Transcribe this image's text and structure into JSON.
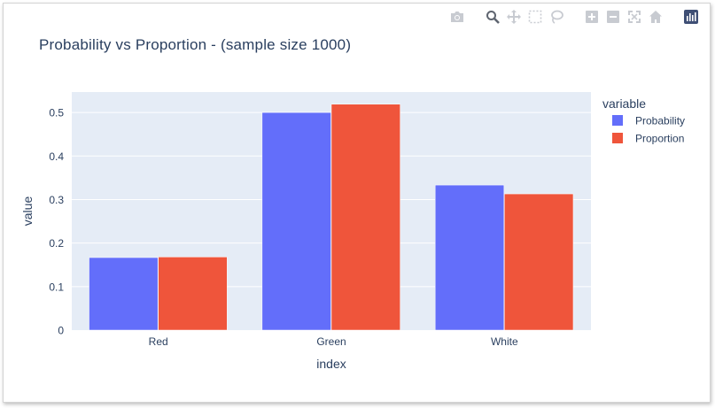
{
  "modebar": {
    "icons": [
      "camera-icon",
      "zoom-icon",
      "pan-icon",
      "box-select-icon",
      "lasso-icon",
      "zoom-in-icon",
      "zoom-out-icon",
      "autoscale-icon",
      "reset-axes-icon",
      "plotly-logo-icon"
    ]
  },
  "chart_data": {
    "type": "bar",
    "title": "Probability vs Proportion - (sample size 1000)",
    "xlabel": "index",
    "ylabel": "value",
    "categories": [
      "Red",
      "Green",
      "White"
    ],
    "series": [
      {
        "name": "Probability",
        "values": [
          0.1667,
          0.5,
          0.3333
        ],
        "color": "#636efa"
      },
      {
        "name": "Proportion",
        "values": [
          0.168,
          0.519,
          0.313
        ],
        "color": "#ef553b"
      }
    ],
    "ylim": [
      0,
      0.547
    ],
    "yticks": [
      "0",
      "0.1",
      "0.2",
      "0.3",
      "0.4",
      "0.5"
    ],
    "ytick_values": [
      0,
      0.1,
      0.2,
      0.3,
      0.4,
      0.5
    ],
    "legend": {
      "title": "variable",
      "placement": "top-right"
    },
    "grid": true,
    "plot_bg": "#e5ecf6"
  }
}
